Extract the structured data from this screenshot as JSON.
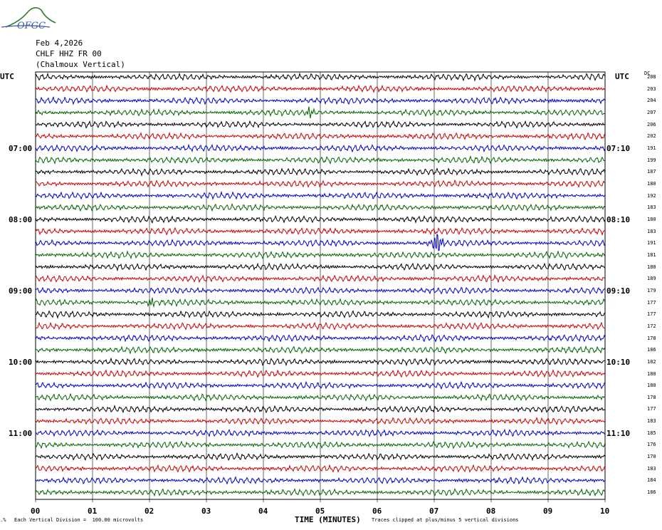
{
  "logo": {
    "text": "OFGC",
    "color": "#2a7a2a"
  },
  "header": {
    "date": "Feb 4,2026",
    "station": "CHLF HHZ FR 00",
    "location": "(Chalmoux Vertical)"
  },
  "utc_label_left": "UTC",
  "utc_label_right": "UTC",
  "dc_label": "DC",
  "chart_data": {
    "type": "line",
    "title": "",
    "xlabel": "TIME (MINUTES)",
    "x_ticks": [
      "00",
      "01",
      "02",
      "03",
      "04",
      "05",
      "06",
      "07",
      "08",
      "09",
      "10"
    ],
    "x_range": [
      0,
      10
    ],
    "trace_colors": [
      "#000000",
      "#cc0000",
      "#0000cc",
      "#006600"
    ],
    "left_hour_labels": [
      "07:00",
      "08:00",
      "09:00",
      "10:00",
      "11:00"
    ],
    "right_hour_labels": [
      "07:10",
      "08:10",
      "09:10",
      "10:10",
      "11:10"
    ],
    "dc_offsets": [
      208,
      203,
      204,
      207,
      206,
      202,
      191,
      199,
      187,
      180,
      192,
      183,
      180,
      183,
      191,
      181,
      180,
      189,
      179,
      177,
      177,
      172,
      178,
      186,
      182,
      180,
      180,
      178,
      177,
      183,
      185,
      176,
      170,
      183,
      184,
      186
    ],
    "events": [
      {
        "trace": 14,
        "minute": 7.05,
        "note": "large amplitude burst"
      },
      {
        "trace": 19,
        "minute": 2.05,
        "note": "burst"
      },
      {
        "trace": 3,
        "minute": 4.8,
        "note": "small burst"
      }
    ],
    "vertical_grid": true
  },
  "footer": {
    "scale": "Each Vertical Division =  100.00 microvolts",
    "clip": "Traces clipped at plus/minus 5 vertical divisions"
  }
}
